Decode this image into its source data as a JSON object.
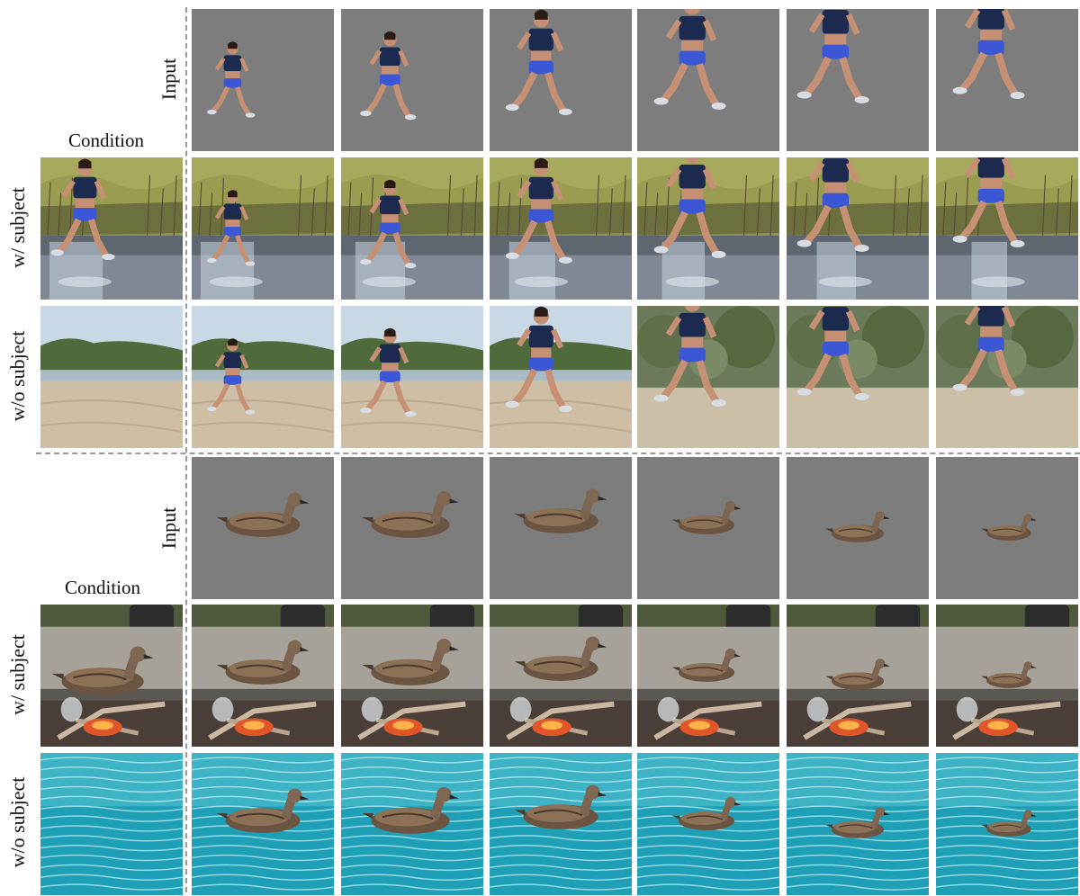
{
  "labels": {
    "input": "Input",
    "condition": "Condition",
    "with_subject": "w/ subject",
    "without_subject": "w/o subject"
  },
  "groups": [
    {
      "subject": "runner",
      "frames": 6,
      "rows": [
        "Input",
        "w/ subject",
        "w/o subject"
      ],
      "conditions": [
        "lake-reeds-scene",
        "beach-scene"
      ]
    },
    {
      "subject": "duck",
      "frames": 6,
      "rows": [
        "Input",
        "w/ subject",
        "w/o subject"
      ],
      "conditions": [
        "campfire-scene",
        "pool-water-scene"
      ]
    }
  ],
  "colors": {
    "input_background": "#7d7d7d",
    "divider": "#9a9a9a"
  }
}
